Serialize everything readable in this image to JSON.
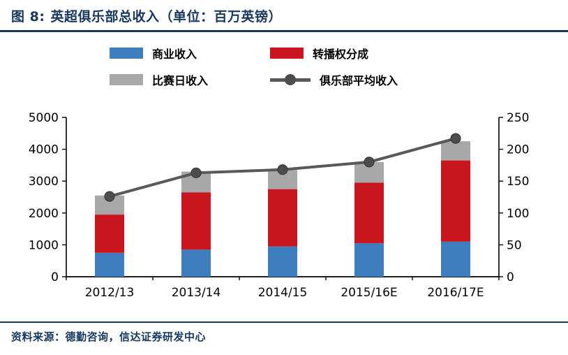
{
  "header": {
    "figure_label": "图 8:",
    "title": "英超俱乐部总收入（单位：百万英镑）"
  },
  "footer": {
    "source": "资料来源：德勤咨询，信达证券研发中心"
  },
  "colors": {
    "navy": "#17375E",
    "commercial": "#3E7EBE",
    "broadcast": "#C9151E",
    "matchday": "#A8A8A8",
    "line": "#595959",
    "marker_fill": "#4C4C4C",
    "marker_stroke": "#3A3A3A",
    "axis": "#000000"
  },
  "chart_data": {
    "type": "bar",
    "stacked": true,
    "title": "英超俱乐部总收入（单位：百万英镑）",
    "categories": [
      "2012/13",
      "2013/14",
      "2014/15",
      "2015/16E",
      "2016/17E"
    ],
    "series": [
      {
        "name": "商业收入",
        "axis": "left",
        "color_key": "commercial",
        "values": [
          750,
          850,
          950,
          1050,
          1100
        ]
      },
      {
        "name": "转播权分成",
        "axis": "left",
        "color_key": "broadcast",
        "values": [
          1200,
          1800,
          1800,
          1900,
          2550
        ]
      },
      {
        "name": "比赛日收入",
        "axis": "left",
        "color_key": "matchday",
        "values": [
          600,
          650,
          600,
          650,
          600
        ]
      }
    ],
    "line_series": {
      "name": "俱乐部平均收入",
      "axis": "right",
      "color_key": "line",
      "values": [
        126,
        163,
        168,
        180,
        217
      ]
    },
    "left_axis": {
      "min": 0,
      "max": 5000,
      "step": 1000
    },
    "right_axis": {
      "min": 0,
      "max": 250,
      "step": 50
    },
    "grid": false,
    "legend_position": "top"
  }
}
